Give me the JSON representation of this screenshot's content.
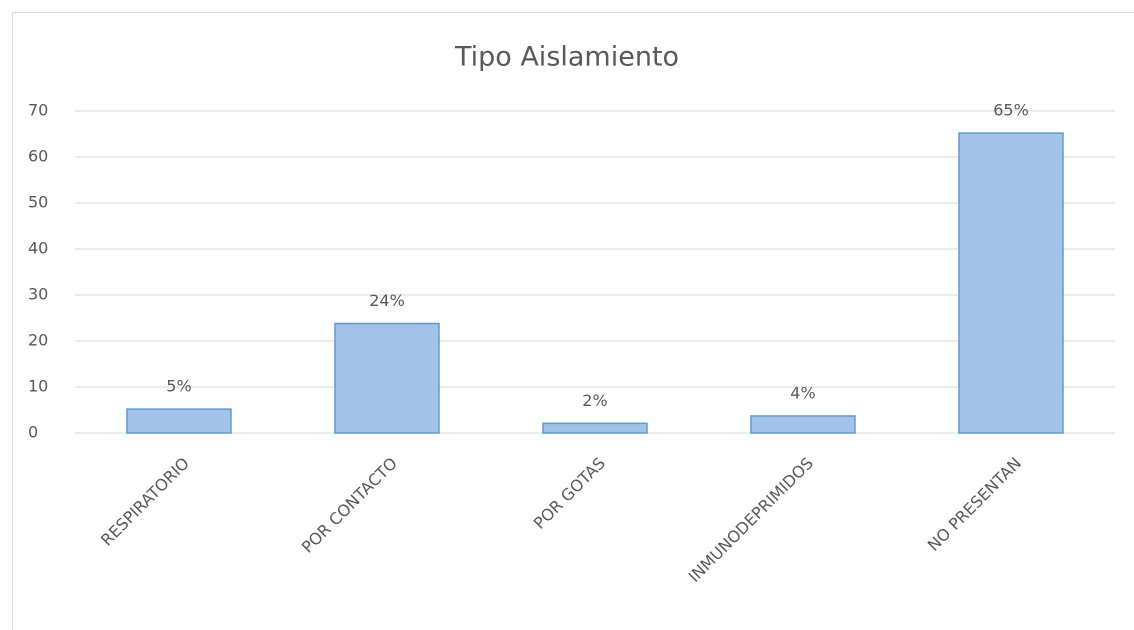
{
  "chart_data": {
    "type": "bar",
    "title": "Tipo Aislamiento",
    "categories": [
      "RESPIRATORIO",
      "POR CONTACTO",
      "POR GOTAS",
      "INMUNODEPRIMIDOS",
      "NO PRESENTAN"
    ],
    "values": [
      5.2,
      23.8,
      2.1,
      3.7,
      65.2
    ],
    "value_labels": [
      "5%",
      "24%",
      "2%",
      "4%",
      "65%"
    ],
    "color": "#a3c2e8",
    "ylim": [
      0,
      70
    ],
    "yticks": [
      0,
      10,
      20,
      30,
      40,
      50,
      60,
      70
    ],
    "grid": true
  }
}
